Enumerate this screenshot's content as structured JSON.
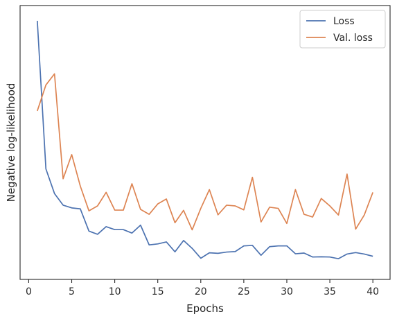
{
  "chart_data": {
    "type": "line",
    "title": "",
    "xlabel": "Epochs",
    "ylabel": "Negative log-likelihood",
    "xlim": [
      -1,
      42
    ],
    "ylim": [
      0,
      100
    ],
    "xticks": [
      0,
      5,
      10,
      15,
      20,
      25,
      30,
      35,
      40
    ],
    "grid": false,
    "legend_position": "top-right",
    "series": [
      {
        "name": "Loss",
        "color": "#4c72b0",
        "x": [
          1,
          2,
          3,
          4,
          5,
          6,
          7,
          8,
          9,
          10,
          11,
          12,
          13,
          14,
          15,
          16,
          17,
          18,
          19,
          20,
          21,
          22,
          23,
          24,
          25,
          26,
          27,
          28,
          29,
          30,
          31,
          32,
          33,
          34,
          35,
          36,
          37,
          38,
          39,
          40
        ],
        "values": [
          100.0,
          40.0,
          30.0,
          25.3,
          24.2,
          23.8,
          14.8,
          13.5,
          16.6,
          15.4,
          15.4,
          14.0,
          17.2,
          9.2,
          9.6,
          10.4,
          6.4,
          11.0,
          7.8,
          3.8,
          6.0,
          5.8,
          6.3,
          6.5,
          8.8,
          9.0,
          5.0,
          8.5,
          8.8,
          8.8,
          5.6,
          5.9,
          4.3,
          4.4,
          4.3,
          3.6,
          5.5,
          6.1,
          5.5,
          4.6
        ]
      },
      {
        "name": "Val. loss",
        "color": "#dd8452",
        "x": [
          1,
          2,
          3,
          4,
          5,
          6,
          7,
          8,
          9,
          10,
          11,
          12,
          13,
          14,
          15,
          16,
          17,
          18,
          19,
          20,
          21,
          22,
          23,
          24,
          25,
          26,
          27,
          28,
          29,
          30,
          31,
          32,
          33,
          34,
          35,
          36,
          37,
          38,
          39,
          40
        ],
        "values": [
          63.5,
          74.0,
          78.5,
          36.0,
          45.8,
          33.0,
          23.0,
          25.0,
          30.5,
          23.3,
          23.3,
          34.0,
          23.6,
          21.6,
          25.8,
          27.8,
          18.2,
          23.2,
          15.3,
          24.0,
          31.6,
          21.4,
          25.3,
          25.0,
          23.4,
          36.6,
          18.5,
          24.5,
          24.0,
          17.9,
          31.6,
          21.6,
          20.5,
          28.0,
          25.0,
          21.3,
          37.9,
          15.6,
          21.3,
          30.5
        ]
      }
    ]
  }
}
